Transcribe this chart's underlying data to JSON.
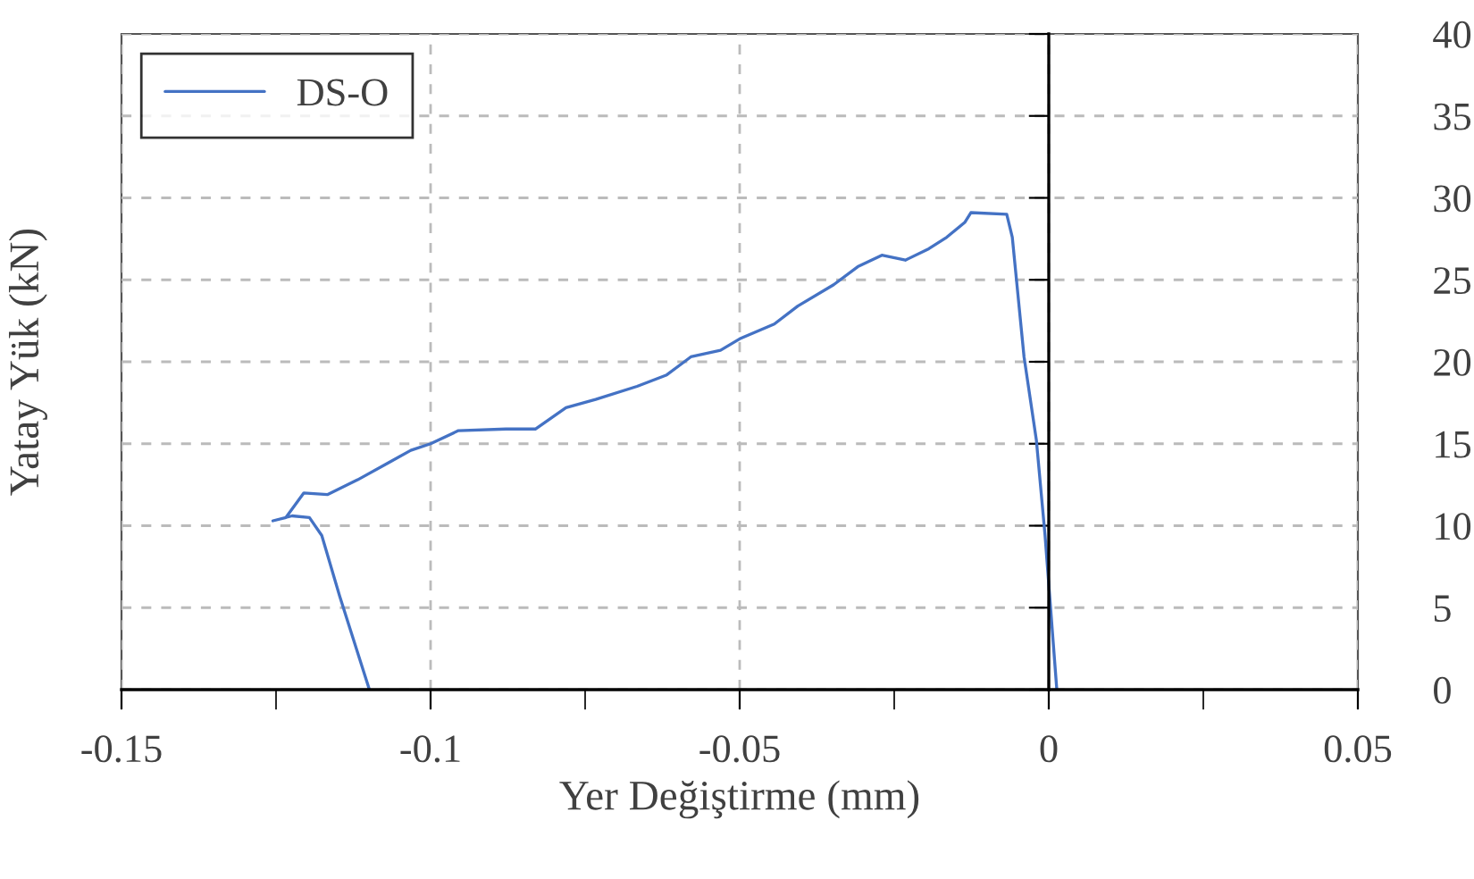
{
  "chart_data": {
    "type": "line",
    "xlabel": "Yer Değiştirme (mm)",
    "ylabel": "Yatay Yük (kN)",
    "xlim": [
      -0.15,
      0.05
    ],
    "ylim": [
      0,
      40
    ],
    "xticks": [
      -0.15,
      {
        "value": -0.125,
        "label": null
      },
      -0.1,
      {
        "value": -0.075,
        "label": null
      },
      -0.05,
      {
        "value": -0.025,
        "label": null
      },
      0,
      {
        "value": 0.025,
        "label": null
      },
      0.05
    ],
    "yticks": [
      0,
      5,
      10,
      15,
      20,
      25,
      30,
      35,
      40
    ],
    "grid": true,
    "legend": "top left",
    "marker": "none",
    "line_style": "solid",
    "series": [
      {
        "name": "DS-O",
        "color": "#4472c4",
        "x": [
          -0.1099,
          -0.1147,
          -0.1176,
          -0.1196,
          -0.1224,
          -0.1255,
          -0.1234,
          -0.1205,
          -0.1167,
          -0.1118,
          -0.107,
          -0.1032,
          -0.1,
          -0.0955,
          -0.0878,
          -0.083,
          -0.0781,
          -0.0733,
          -0.0666,
          -0.0618,
          -0.0579,
          -0.0531,
          -0.05,
          -0.0444,
          -0.0406,
          -0.0348,
          -0.0309,
          -0.027,
          -0.0232,
          -0.0194,
          -0.0165,
          -0.0136,
          -0.0126,
          -0.0068,
          -0.0059,
          -0.004,
          -0.002,
          -0.0006,
          0.0013
        ],
        "values": [
          0,
          5.7,
          9.4,
          10.5,
          10.6,
          10.3,
          10.5,
          12.0,
          11.9,
          12.8,
          13.8,
          14.6,
          15.0,
          15.8,
          15.9,
          15.9,
          17.2,
          17.7,
          18.5,
          19.2,
          20.3,
          20.7,
          21.4,
          22.3,
          23.4,
          24.7,
          25.8,
          26.5,
          26.2,
          26.9,
          27.6,
          28.5,
          29.1,
          29.0,
          27.6,
          20.3,
          15.2,
          9.4,
          0
        ]
      }
    ]
  }
}
